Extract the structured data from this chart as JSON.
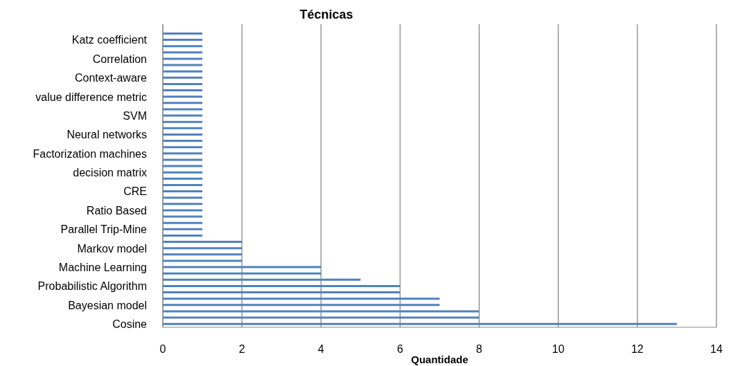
{
  "chart_data": {
    "type": "bar",
    "orientation": "horizontal",
    "title": "Técnicas",
    "xlabel": "Quantidade",
    "categories": [
      null,
      null,
      "Katz coefficient",
      null,
      null,
      "Correlation",
      null,
      null,
      "Context-aware",
      null,
      null,
      "value difference metric",
      null,
      null,
      "SVM",
      null,
      null,
      "Neural networks",
      null,
      null,
      "Factorization machines",
      null,
      null,
      "decision matrix",
      null,
      null,
      "CRE",
      null,
      null,
      "Ratio Based",
      null,
      null,
      "Parallel Trip-Mine",
      null,
      null,
      "Markov model",
      null,
      null,
      "Machine Learning",
      null,
      null,
      "Probabilistic Algorithm",
      null,
      null,
      "Bayesian model",
      null,
      null,
      "Cosine"
    ],
    "values": [
      null,
      1,
      1,
      1,
      1,
      1,
      1,
      1,
      1,
      1,
      1,
      1,
      1,
      1,
      1,
      1,
      1,
      1,
      1,
      1,
      1,
      1,
      1,
      1,
      1,
      1,
      1,
      1,
      1,
      1,
      1,
      1,
      1,
      1,
      2,
      2,
      2,
      2,
      4,
      4,
      5,
      6,
      6,
      7,
      7,
      8,
      8,
      13
    ],
    "color": "#4f81bd",
    "xlim": [
      0,
      14
    ],
    "xticks": [
      0,
      2,
      4,
      6,
      8,
      10,
      12,
      14
    ],
    "grid": "x"
  }
}
